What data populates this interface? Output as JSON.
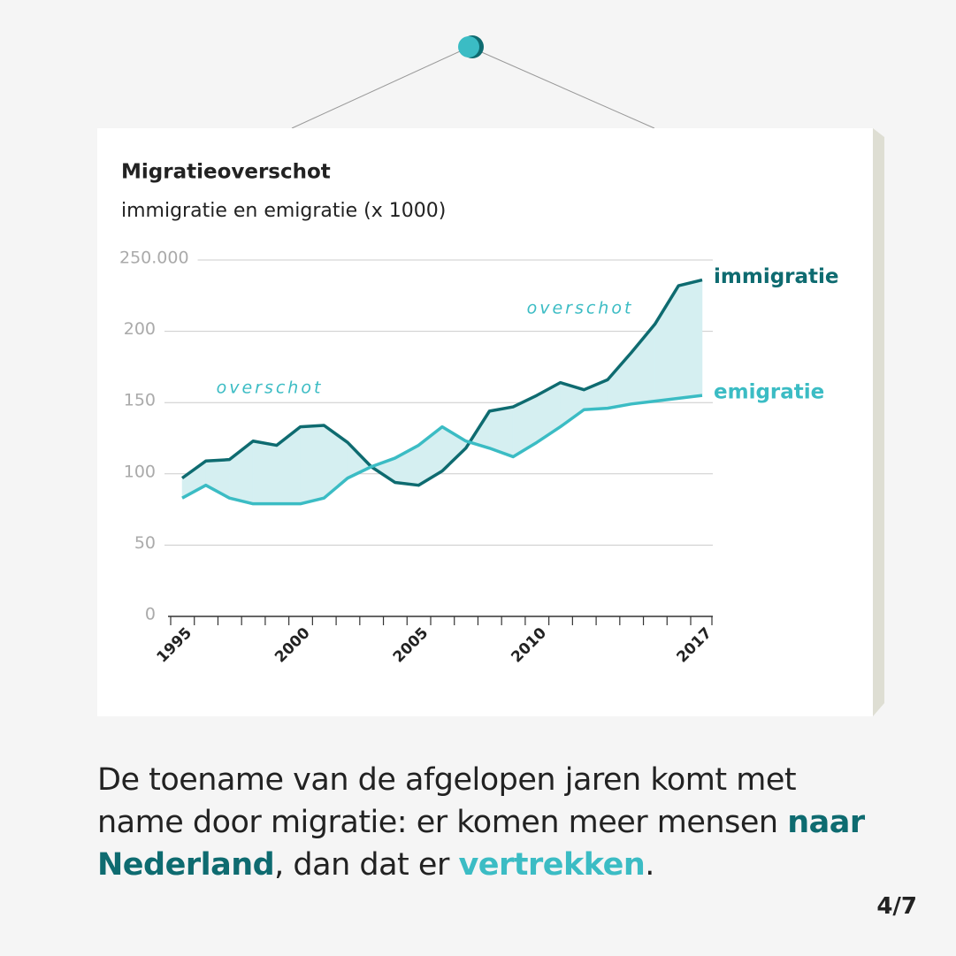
{
  "chart_data": {
    "type": "line",
    "title": "Migratieoverschot",
    "subtitle": "immigratie en emigratie (x 1000)",
    "x": [
      1995,
      1996,
      1997,
      1998,
      1999,
      2000,
      2001,
      2002,
      2003,
      2004,
      2005,
      2006,
      2007,
      2008,
      2009,
      2010,
      2011,
      2012,
      2013,
      2014,
      2015,
      2016,
      2017
    ],
    "series": [
      {
        "name": "immigratie",
        "color": "#0e6b70",
        "values": [
          97,
          109,
          110,
          123,
          120,
          133,
          134,
          122,
          105,
          94,
          92,
          102,
          118,
          144,
          147,
          155,
          164,
          159,
          166,
          185,
          205,
          232,
          236
        ]
      },
      {
        "name": "emigratie",
        "color": "#3bbcc4",
        "values": [
          83,
          92,
          83,
          79,
          79,
          79,
          83,
          97,
          105,
          111,
          120,
          133,
          123,
          118,
          112,
          122,
          133,
          145,
          146,
          149,
          151,
          153,
          155
        ]
      }
    ],
    "fill_color": "#d5eff1",
    "xlim": [
      1995,
      2017
    ],
    "xticks": [
      1995,
      2000,
      2005,
      2010,
      2017
    ],
    "ylim": [
      0,
      250
    ],
    "yticks": [
      0,
      50,
      100,
      150,
      200,
      {
        "value": 250,
        "label": "250.000"
      }
    ],
    "grid": true,
    "annotations": [
      "overschot",
      "overschot"
    ]
  },
  "caption": {
    "text1": "De toename van de afgelopen jaren komt met name door migratie: er komen meer mensen ",
    "highlight1": "naar Nederland",
    "text2": ", dan dat er ",
    "highlight2": "vertrekken",
    "text3": "."
  },
  "page_number": "4/7"
}
